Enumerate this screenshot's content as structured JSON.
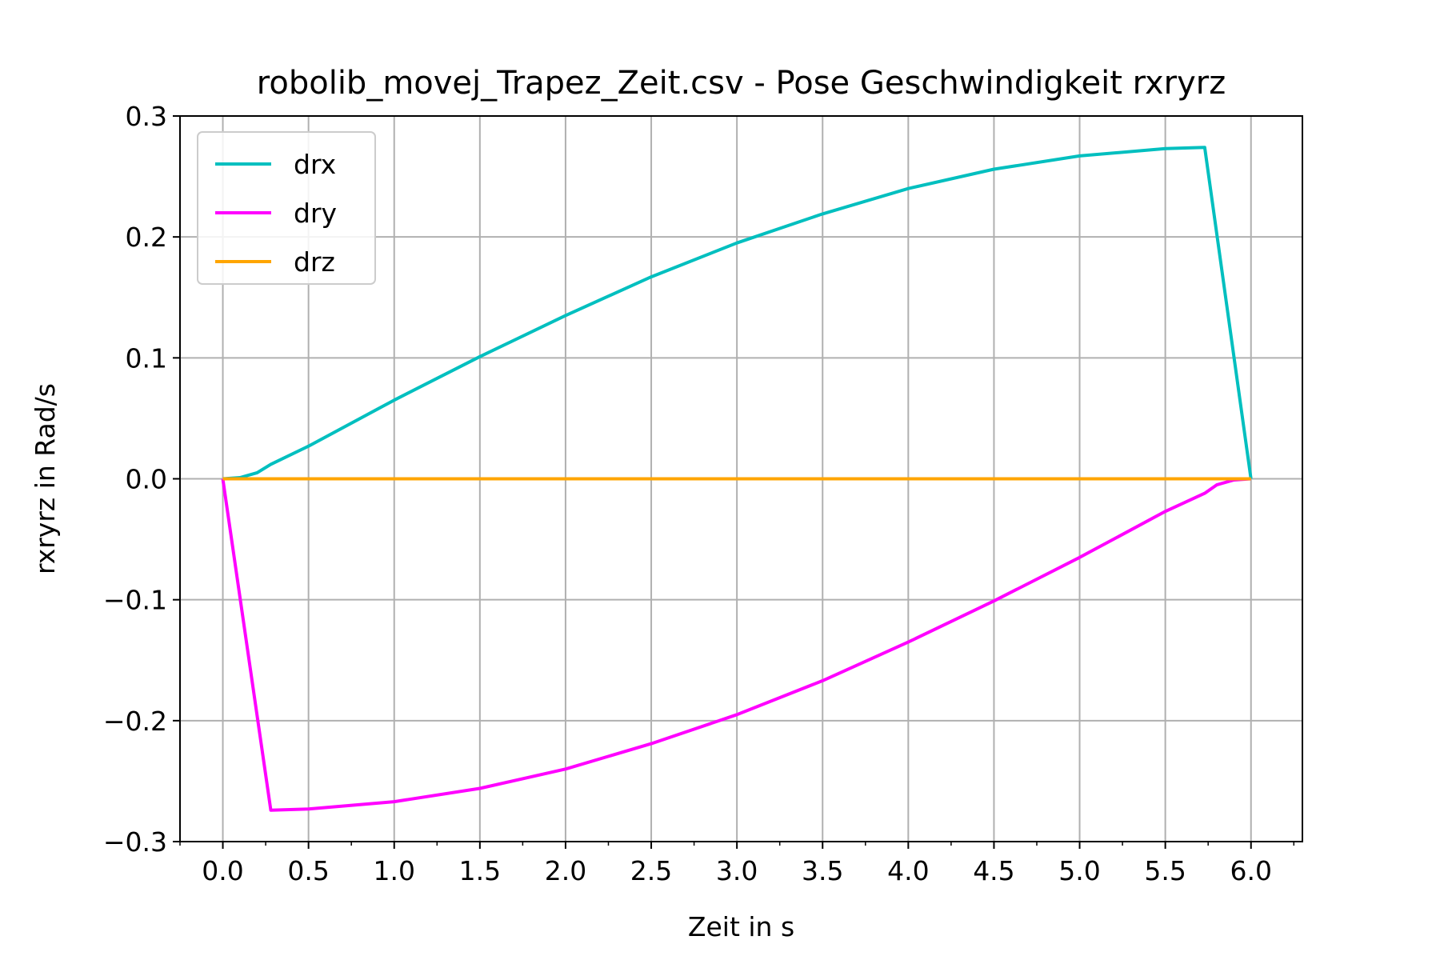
{
  "chart_data": {
    "type": "line",
    "title": "robolib_movej_Trapez_Zeit.csv - Pose Geschwindigkeit rxryrz",
    "xlabel": "Zeit in s",
    "ylabel": "rxryrz in Rad/s",
    "xlim": [
      -0.25,
      6.3
    ],
    "ylim": [
      -0.3,
      0.3
    ],
    "xticks": [
      0.0,
      0.5,
      1.0,
      1.5,
      2.0,
      2.5,
      3.0,
      3.5,
      4.0,
      4.5,
      5.0,
      5.5,
      6.0
    ],
    "xtick_labels": [
      "0.0",
      "0.5",
      "1.0",
      "1.5",
      "2.0",
      "2.5",
      "3.0",
      "3.5",
      "4.0",
      "4.5",
      "5.0",
      "5.5",
      "6.0"
    ],
    "yticks": [
      -0.3,
      -0.2,
      -0.1,
      0.0,
      0.1,
      0.2,
      0.3
    ],
    "ytick_labels": [
      "−0.3",
      "−0.2",
      "−0.1",
      "0.0",
      "0.1",
      "0.2",
      "0.3"
    ],
    "grid": true,
    "legend_position": "top-left",
    "series": [
      {
        "name": "drx",
        "color": "#00bfbf",
        "x": [
          0.0,
          0.1,
          0.2,
          0.28,
          0.5,
          1.0,
          1.5,
          2.0,
          2.5,
          3.0,
          3.5,
          4.0,
          4.5,
          5.0,
          5.5,
          5.73,
          6.0
        ],
        "y": [
          0.0,
          0.001,
          0.005,
          0.012,
          0.027,
          0.065,
          0.101,
          0.135,
          0.167,
          0.195,
          0.219,
          0.24,
          0.256,
          0.267,
          0.273,
          0.274,
          0.0
        ]
      },
      {
        "name": "dry",
        "color": "#ff00ff",
        "x": [
          0.0,
          0.28,
          0.5,
          1.0,
          1.5,
          2.0,
          2.5,
          3.0,
          3.5,
          4.0,
          4.5,
          5.0,
          5.5,
          5.73,
          5.8,
          5.9,
          6.0
        ],
        "y": [
          0.0,
          -0.274,
          -0.273,
          -0.267,
          -0.256,
          -0.24,
          -0.219,
          -0.195,
          -0.167,
          -0.135,
          -0.101,
          -0.065,
          -0.027,
          -0.012,
          -0.005,
          -0.001,
          0.0
        ]
      },
      {
        "name": "drz",
        "color": "#ffa500",
        "x": [
          0.0,
          6.0
        ],
        "y": [
          0.0,
          0.0
        ]
      }
    ]
  }
}
